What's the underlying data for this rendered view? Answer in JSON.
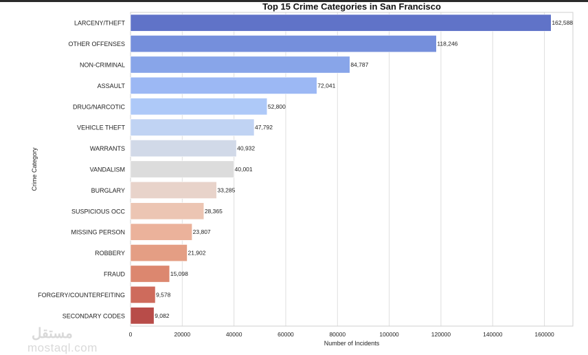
{
  "chart_data": {
    "type": "bar",
    "orientation": "horizontal",
    "title": "Top 15 Crime Categories in San Francisco",
    "xlabel": "Number of Incidents",
    "ylabel": "Crime Category",
    "xlim": [
      0,
      171000
    ],
    "xticks": [
      0,
      20000,
      40000,
      60000,
      80000,
      100000,
      120000,
      140000,
      160000
    ],
    "grid": true,
    "categories": [
      "LARCENY/THEFT",
      "OTHER OFFENSES",
      "NON-CRIMINAL",
      "ASSAULT",
      "DRUG/NARCOTIC",
      "VEHICLE THEFT",
      "WARRANTS",
      "VANDALISM",
      "BURGLARY",
      "SUSPICIOUS OCC",
      "MISSING PERSON",
      "ROBBERY",
      "FRAUD",
      "FORGERY/COUNTERFEITING",
      "SECONDARY CODES"
    ],
    "values": [
      162588,
      118246,
      84787,
      72041,
      52800,
      47792,
      40932,
      40001,
      33285,
      28365,
      23807,
      21902,
      15098,
      9578,
      9082
    ],
    "data_labels": [
      "162,588",
      "118,246",
      "84,787",
      "72,041",
      "52,800",
      "47,792",
      "40,932",
      "40,001",
      "33,285",
      "28,365",
      "23,807",
      "21,902",
      "15,098",
      "9,578",
      "9,082"
    ],
    "colors": [
      "#6073c8",
      "#758fdc",
      "#88a5e9",
      "#9cb8f4",
      "#aec9f8",
      "#c0d3f3",
      "#d1d9e8",
      "#dcdcdc",
      "#e8d3ca",
      "#ecc5b3",
      "#ebb29b",
      "#e49e84",
      "#dc876f",
      "#ce6b5c",
      "#b84c49"
    ]
  },
  "watermark": {
    "arabic": "مستقل",
    "latin": "mostaql.com"
  }
}
